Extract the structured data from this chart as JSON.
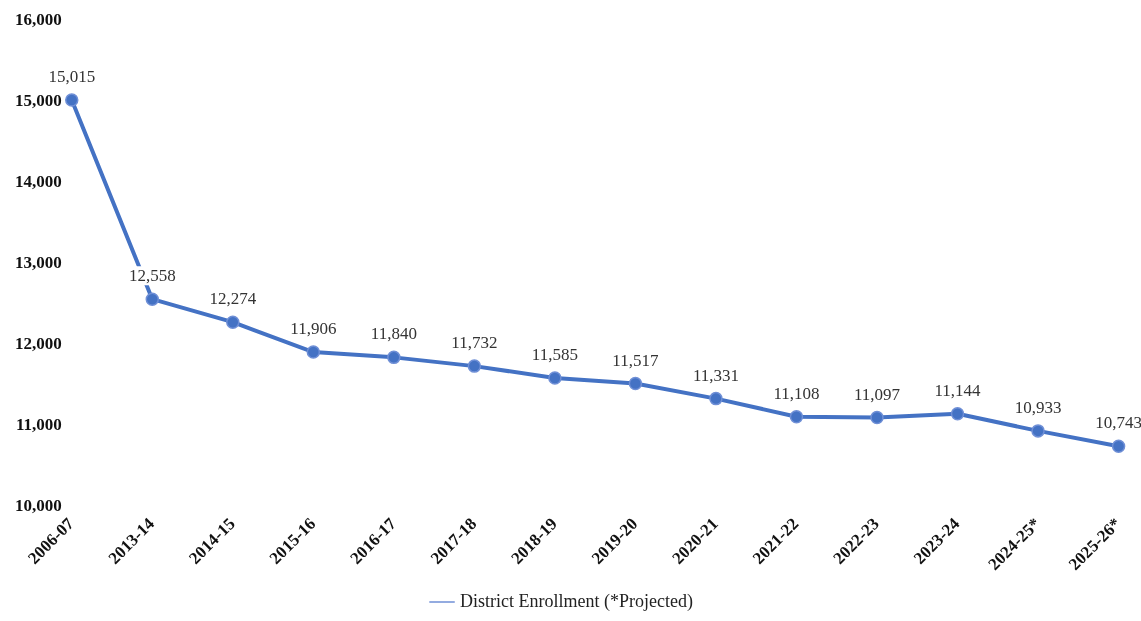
{
  "chart_data": {
    "type": "line",
    "categories": [
      "2006-07",
      "2013-14",
      "2014-15",
      "2015-16",
      "2016-17",
      "2017-18",
      "2018-19",
      "2019-20",
      "2020-21",
      "2021-22",
      "2022-23",
      "2023-24",
      "2024-25*",
      "2025-26*"
    ],
    "series": [
      {
        "name": "District Enrollment (*Projected)",
        "color": "#4472c4",
        "values": [
          15015,
          12558,
          12274,
          11906,
          11840,
          11732,
          11585,
          11517,
          11331,
          11108,
          11097,
          11144,
          10933,
          10743
        ],
        "value_labels": [
          "15,015",
          "12,558",
          "12,274",
          "11,906",
          "11,840",
          "11,732",
          "11,585",
          "11,517",
          "11,331",
          "11,108",
          "11,097",
          "11,144",
          "10,933",
          "10,743"
        ]
      }
    ],
    "ylim": [
      10000,
      16000
    ],
    "yticks": [
      {
        "value": 10000,
        "label": "10,000"
      },
      {
        "value": 11000,
        "label": "11,000"
      },
      {
        "value": 12000,
        "label": "12,000"
      },
      {
        "value": 13000,
        "label": "13,000"
      },
      {
        "value": 14000,
        "label": "14,000"
      },
      {
        "value": 15000,
        "label": "15,000"
      },
      {
        "value": 16000,
        "label": "16,000"
      }
    ],
    "grid": false,
    "legend": "bottom",
    "marker": "circle",
    "line_style": "solid"
  }
}
